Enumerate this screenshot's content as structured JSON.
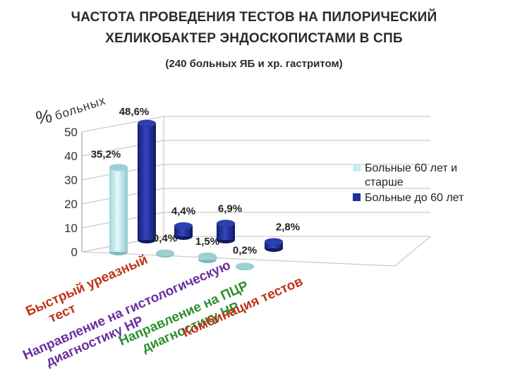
{
  "header": {
    "title_line1": "ЧАСТОТА ПРОВЕДЕНИЯ ТЕСТОВ НА ПИЛОРИЧЕСКИЙ",
    "title_line2": "ХЕЛИКОБАКТЕР ЭНДОСКОПИСТАМИ В СПБ",
    "subtitle": "(240 больных ЯБ и хр. гастритом)"
  },
  "chart_data": {
    "type": "bar",
    "ylabel_symbol": "%",
    "ylabel": "больных",
    "ylim": [
      0,
      50
    ],
    "yticks": [
      "0",
      "10",
      "20",
      "30",
      "40",
      "50"
    ],
    "grid": true,
    "legend_position": "right",
    "categories": [
      {
        "lines": [
          "Быстрый уреазный",
          "тест"
        ],
        "color": "#c0321a"
      },
      {
        "lines": [
          "Направление на гистологическую",
          "диагностику НР"
        ],
        "color": "#6b2fa0"
      },
      {
        "lines": [
          "Направление на ПЦР",
          "диагностику НР"
        ],
        "color": "#2f8f2f"
      },
      {
        "lines": [
          "Комбинация тестов"
        ],
        "color": "#c0321a"
      }
    ],
    "series": [
      {
        "name": "Больные 60 лет и старше",
        "color": "#c8ecef",
        "values": [
          35.2,
          0.4,
          1.5,
          0.2
        ],
        "labels": [
          "35,2%",
          "0,4%",
          "1,5%",
          "0,2%"
        ]
      },
      {
        "name": "Больные до 60 лет",
        "color": "#1f2f9a",
        "values": [
          48.6,
          4.4,
          6.9,
          2.8
        ],
        "labels": [
          "48,6%",
          "4,4%",
          "6,9%",
          "2,8%"
        ]
      }
    ]
  }
}
